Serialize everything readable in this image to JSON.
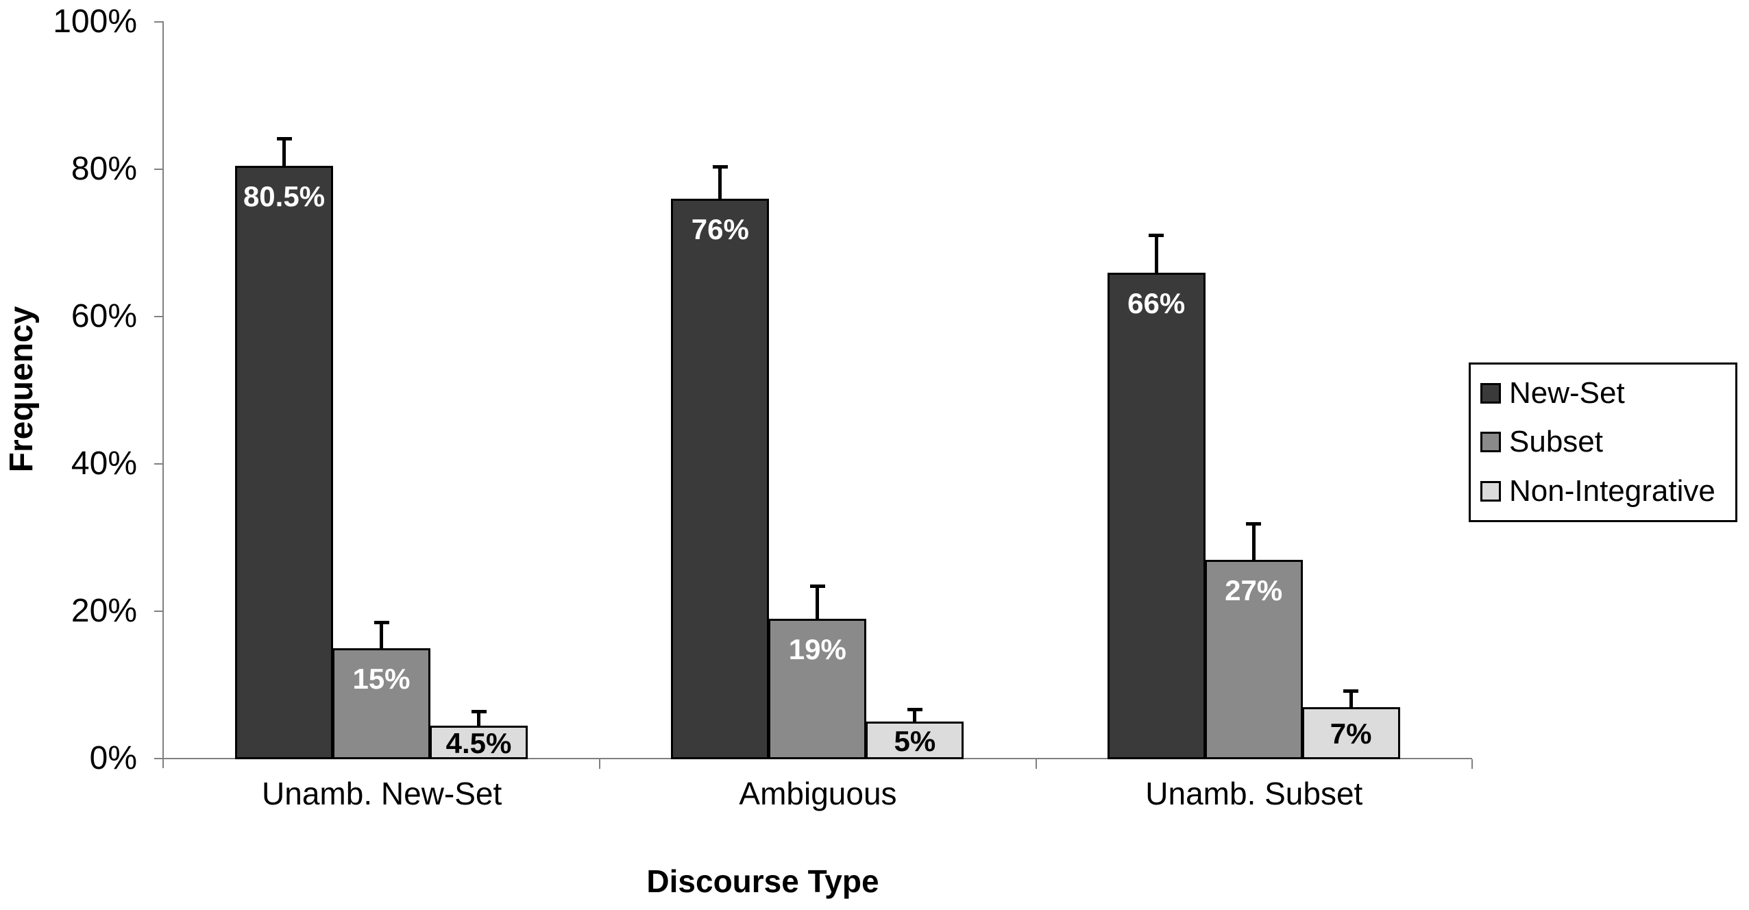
{
  "chart_data": {
    "type": "bar",
    "title": "",
    "xlabel": "Discourse Type",
    "ylabel": "Frequency",
    "ylim": [
      0,
      100
    ],
    "grid": false,
    "legend_position": "right",
    "error_bars": true,
    "y_ticks": [
      {
        "label": "0%",
        "value": 0
      },
      {
        "label": "20%",
        "value": 20
      },
      {
        "label": "40%",
        "value": 40
      },
      {
        "label": "60%",
        "value": 60
      },
      {
        "label": "80%",
        "value": 80
      },
      {
        "label": "100%",
        "value": 100
      }
    ],
    "categories": [
      "Unamb. New-Set",
      "Ambiguous",
      "Unamb. Subset"
    ],
    "series": [
      {
        "name": "New-Set",
        "color": "#3a3a3a",
        "label_color": "#ffffff",
        "values": [
          80.5,
          76,
          66
        ],
        "value_labels": [
          "80.5%",
          "76%",
          "66%"
        ],
        "errors_pct": [
          3.7,
          4.4,
          5.1
        ]
      },
      {
        "name": "Subset",
        "color": "#8a8a8a",
        "label_color": "#ffffff",
        "values": [
          15,
          19,
          27
        ],
        "value_labels": [
          "15%",
          "19%",
          "27%"
        ],
        "errors_pct": [
          3.5,
          4.4,
          4.9
        ]
      },
      {
        "name": "Non-Integrative",
        "color": "#dcdcdc",
        "label_color": "#000000",
        "values": [
          4.5,
          5,
          7
        ],
        "value_labels": [
          "4.5%",
          "5%",
          "7%"
        ],
        "errors_pct": [
          1.9,
          1.7,
          2.2
        ]
      }
    ],
    "axis_color": "#808080",
    "bar_border_color": "#000000"
  }
}
